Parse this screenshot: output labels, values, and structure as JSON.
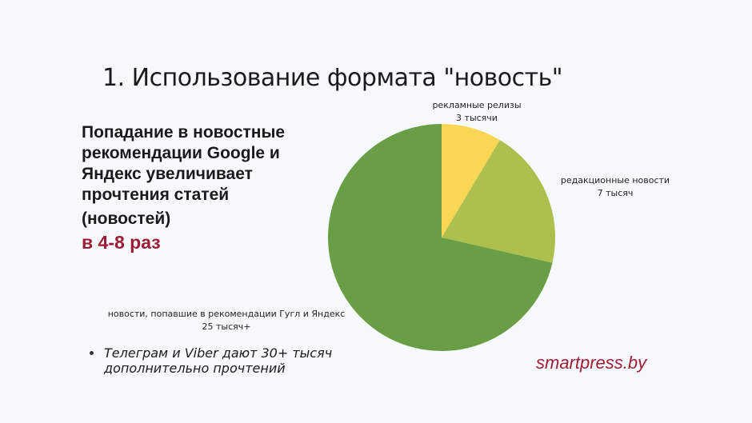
{
  "title": "1. Использование формата \"новость\"",
  "lead_lines": [
    "Попадание в новостные",
    "рекомендации Google и",
    "Яндекс увеличивает",
    "прочтения статей",
    "(новостей)"
  ],
  "accent": "в 4-8 раз",
  "bullet": [
    "Телеграм и Viber дают  30+ тысяч",
    "дополнительно прочтений"
  ],
  "brand": "smartpress.by",
  "chart_data": {
    "type": "pie",
    "start": "top",
    "direction": "clockwise",
    "slices": [
      {
        "label": "рекламные релизы",
        "value_label": "3 тысячи",
        "value": 3,
        "color": "#f9d755"
      },
      {
        "label": "редакционные новости",
        "value_label": "7 тысяч",
        "value": 7,
        "color": "#adbf4c"
      },
      {
        "label": "новости, попавшие в рекомендации Гугл и Яндекс",
        "value_label": "25 тысяч+",
        "value": 25,
        "color": "#6a9e46"
      }
    ]
  }
}
